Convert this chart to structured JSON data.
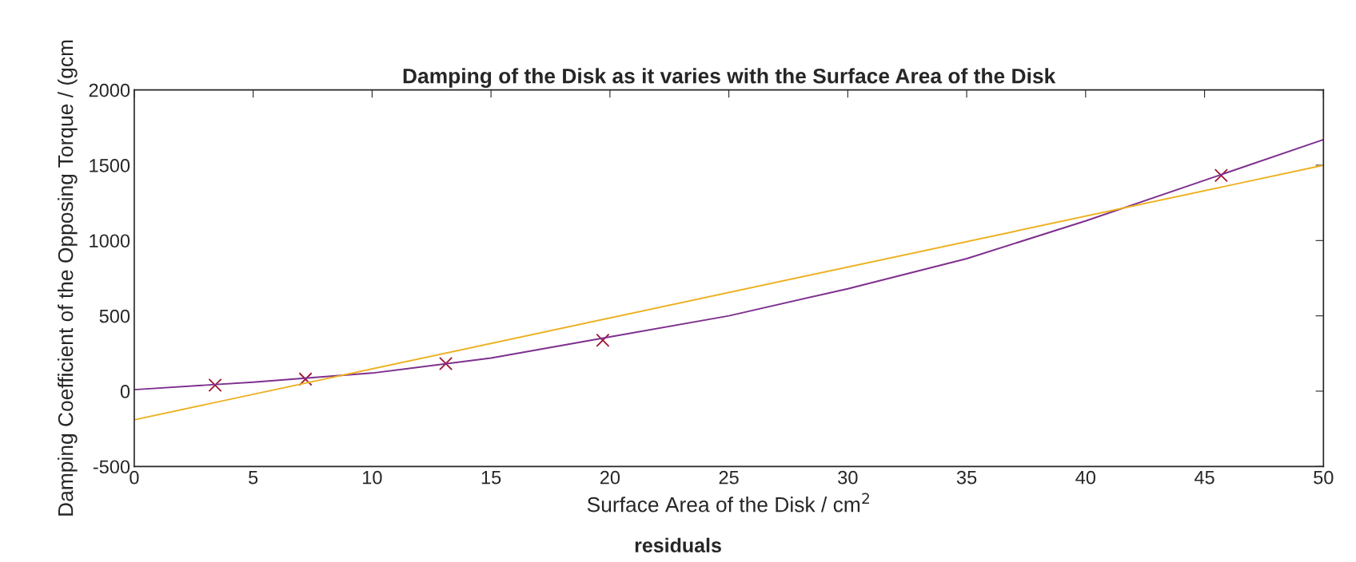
{
  "chart_data": {
    "type": "line",
    "title": "Damping of the Disk as it varies with the Surface Area of the Disk",
    "xlabel": "Surface Area of the Disk / cm$^{2}$",
    "ylabel": "Damping Coefficient of the Opposing Torque / (gcm",
    "annotations": [
      "residuals"
    ],
    "xlim": [
      0,
      50
    ],
    "ylim": [
      -500,
      2000
    ],
    "xticks": [
      0,
      5,
      10,
      15,
      20,
      25,
      30,
      35,
      40,
      45,
      50
    ],
    "yticks": [
      -500,
      0,
      500,
      1000,
      1500,
      2000
    ],
    "grid": false,
    "legend": false,
    "series": [
      {
        "type": "scatter",
        "color": "#a2142f",
        "marker": "cross",
        "x": [
          3.4,
          7.2,
          13.1,
          19.7,
          45.7
        ],
        "values": [
          40,
          80,
          183,
          338,
          1432
        ]
      },
      {
        "color": "#7e2f8e",
        "marker": "none",
        "line_style": "solid",
        "x": [
          0,
          5,
          10,
          15,
          20,
          25,
          30,
          35,
          40,
          45,
          50
        ],
        "values": [
          10,
          60,
          120,
          220,
          360,
          500,
          680,
          880,
          1130,
          1400,
          1670
        ]
      },
      {
        "color": "#edb120",
        "marker": "none",
        "line_style": "solid",
        "x": [
          0,
          50
        ],
        "values": [
          -190,
          1500
        ]
      }
    ]
  }
}
